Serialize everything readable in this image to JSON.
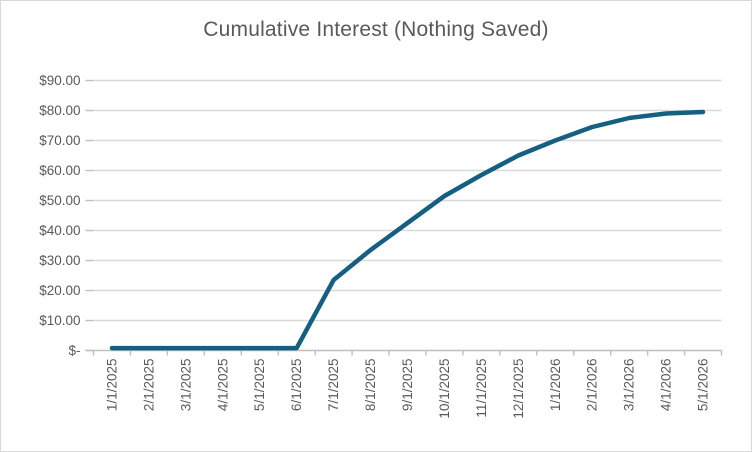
{
  "chart": {
    "title_label": "Cumulative Interest (Nothing Saved)"
  },
  "chart_data": {
    "type": "line",
    "title": "Cumulative Interest (Nothing Saved)",
    "xlabel": "",
    "ylabel": "",
    "categories": [
      "1/1/2025",
      "2/1/2025",
      "3/1/2025",
      "4/1/2025",
      "5/1/2025",
      "6/1/2025",
      "7/1/2025",
      "8/1/2025",
      "9/1/2025",
      "10/1/2025",
      "11/1/2025",
      "12/1/2025",
      "1/1/2026",
      "2/1/2026",
      "3/1/2026",
      "4/1/2026",
      "5/1/2026"
    ],
    "series": [
      {
        "name": "Cumulative Interest",
        "values": [
          0.8,
          0.8,
          0.8,
          0.8,
          0.8,
          0.8,
          23.5,
          33.5,
          42.5,
          51.5,
          58.5,
          65,
          70,
          74.5,
          77.5,
          79,
          79.5
        ]
      }
    ],
    "ylim": [
      0,
      90
    ],
    "ytick_step": 10,
    "ytick_labels": [
      "$-",
      "$10.00",
      "$20.00",
      "$30.00",
      "$40.00",
      "$50.00",
      "$60.00",
      "$70.00",
      "$80.00",
      "$90.00"
    ],
    "grid": true,
    "legend_visible": false,
    "x_labels_rotated_degrees": 90,
    "colors": {
      "line": "#156082",
      "gridline": "#D9D9D9",
      "axis": "#BFBFBF",
      "text": "#595959",
      "background": "#FFFFFF",
      "border": "#D9D9D9"
    }
  }
}
